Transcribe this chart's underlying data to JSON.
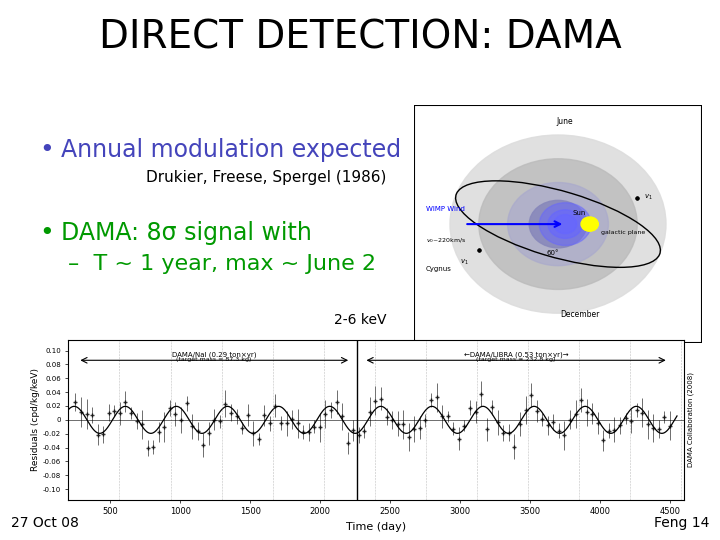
{
  "title": "DIRECT DETECTION: DAMA",
  "bullet1": "Annual modulation expected",
  "bullet1_sub": "Drukier, Freese, Spergel (1986)",
  "bullet2": "DAMA: 8σ signal with",
  "bullet2_sub": "–  T ~ 1 year, max ~ June 2",
  "footer_left": "27 Oct 08",
  "footer_right": "Feng 14",
  "title_color": "#000000",
  "bullet1_color": "#4444bb",
  "bullet2_color": "#009900",
  "sub_color": "#000000",
  "bg_color": "#ffffff",
  "title_fontsize": 28,
  "bullet_fontsize": 17,
  "sub_fontsize": 11,
  "footer_fontsize": 10,
  "plot_label": "2-6 keV",
  "plot_y_label": "Residuals (cpd/kg/keV)",
  "plot_x_label": "Time (day)"
}
